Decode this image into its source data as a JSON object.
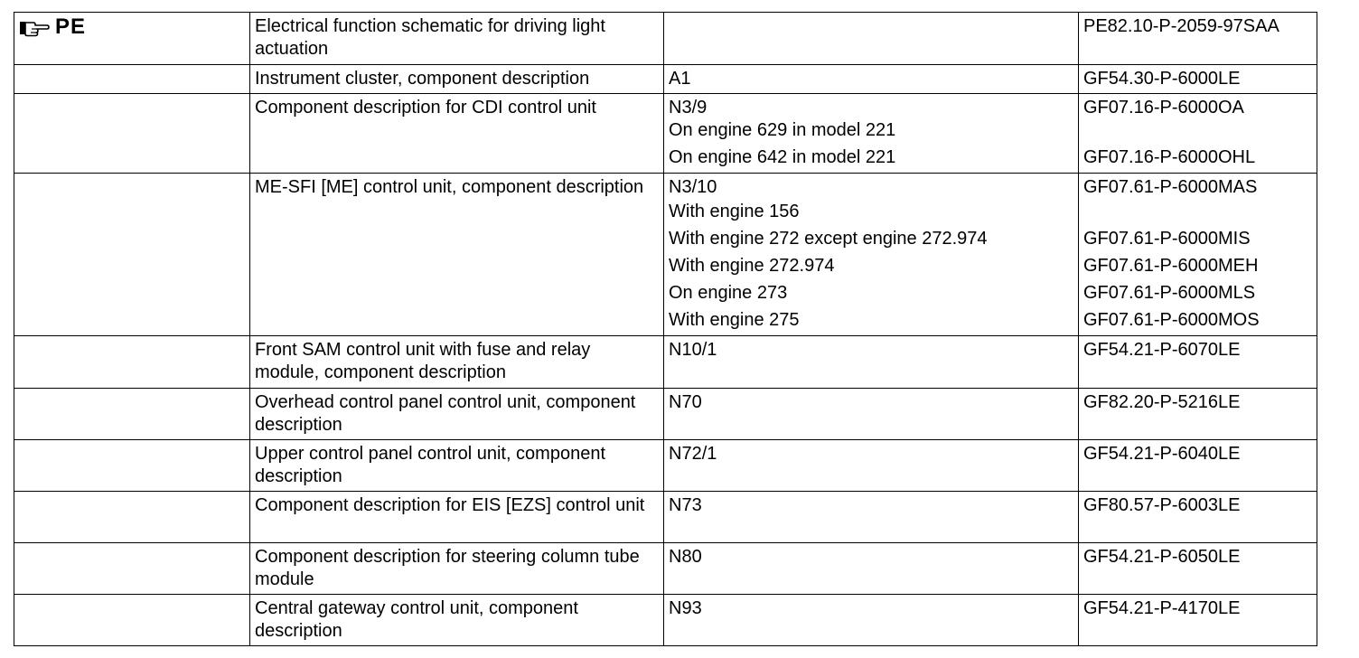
{
  "header": {
    "marker_label": "PE",
    "marker_icon": "pointing-hand-icon"
  },
  "rows": [
    {
      "description": "Electrical function schematic for driving light actuation",
      "components": [],
      "references": [
        "PE82.10-P-2059-97SAA"
      ]
    },
    {
      "description": "Instrument cluster, component description",
      "components": [
        "A1"
      ],
      "references": [
        "GF54.30-P-6000LE"
      ]
    },
    {
      "description": "Component description for CDI control unit",
      "components": [
        "N3/9",
        "On engine 629 in model 221",
        "On engine 642 in model 221"
      ],
      "references": [
        "GF07.16-P-6000OA",
        "",
        "GF07.16-P-6000OHL"
      ]
    },
    {
      "description": "ME-SFI [ME] control unit, component description",
      "components": [
        "N3/10",
        "With engine 156",
        "With engine 272 except engine 272.974",
        "With engine 272.974",
        "On engine 273",
        "With engine 275"
      ],
      "references": [
        "GF07.61-P-6000MAS",
        "",
        "GF07.61-P-6000MIS",
        "GF07.61-P-6000MEH",
        "GF07.61-P-6000MLS",
        "GF07.61-P-6000MOS"
      ]
    },
    {
      "description": "Front SAM control unit with fuse and relay module, component description",
      "components": [
        "N10/1"
      ],
      "references": [
        "GF54.21-P-6070LE"
      ]
    },
    {
      "description": "Overhead control panel control unit, component description",
      "components": [
        "N70"
      ],
      "references": [
        "GF82.20-P-5216LE"
      ]
    },
    {
      "description": "Upper control panel control unit, component description",
      "components": [
        "N72/1"
      ],
      "references": [
        "GF54.21-P-6040LE"
      ]
    },
    {
      "description": "Component description for EIS [EZS] control unit",
      "components": [
        "N73"
      ],
      "references": [
        "GF80.57-P-6003LE"
      ]
    },
    {
      "description": "Component description for steering column tube module",
      "components": [
        "N80"
      ],
      "references": [
        "GF54.21-P-6050LE"
      ]
    },
    {
      "description": "Central gateway control unit, component description",
      "components": [
        "N93"
      ],
      "references": [
        "GF54.21-P-4170LE"
      ]
    }
  ]
}
